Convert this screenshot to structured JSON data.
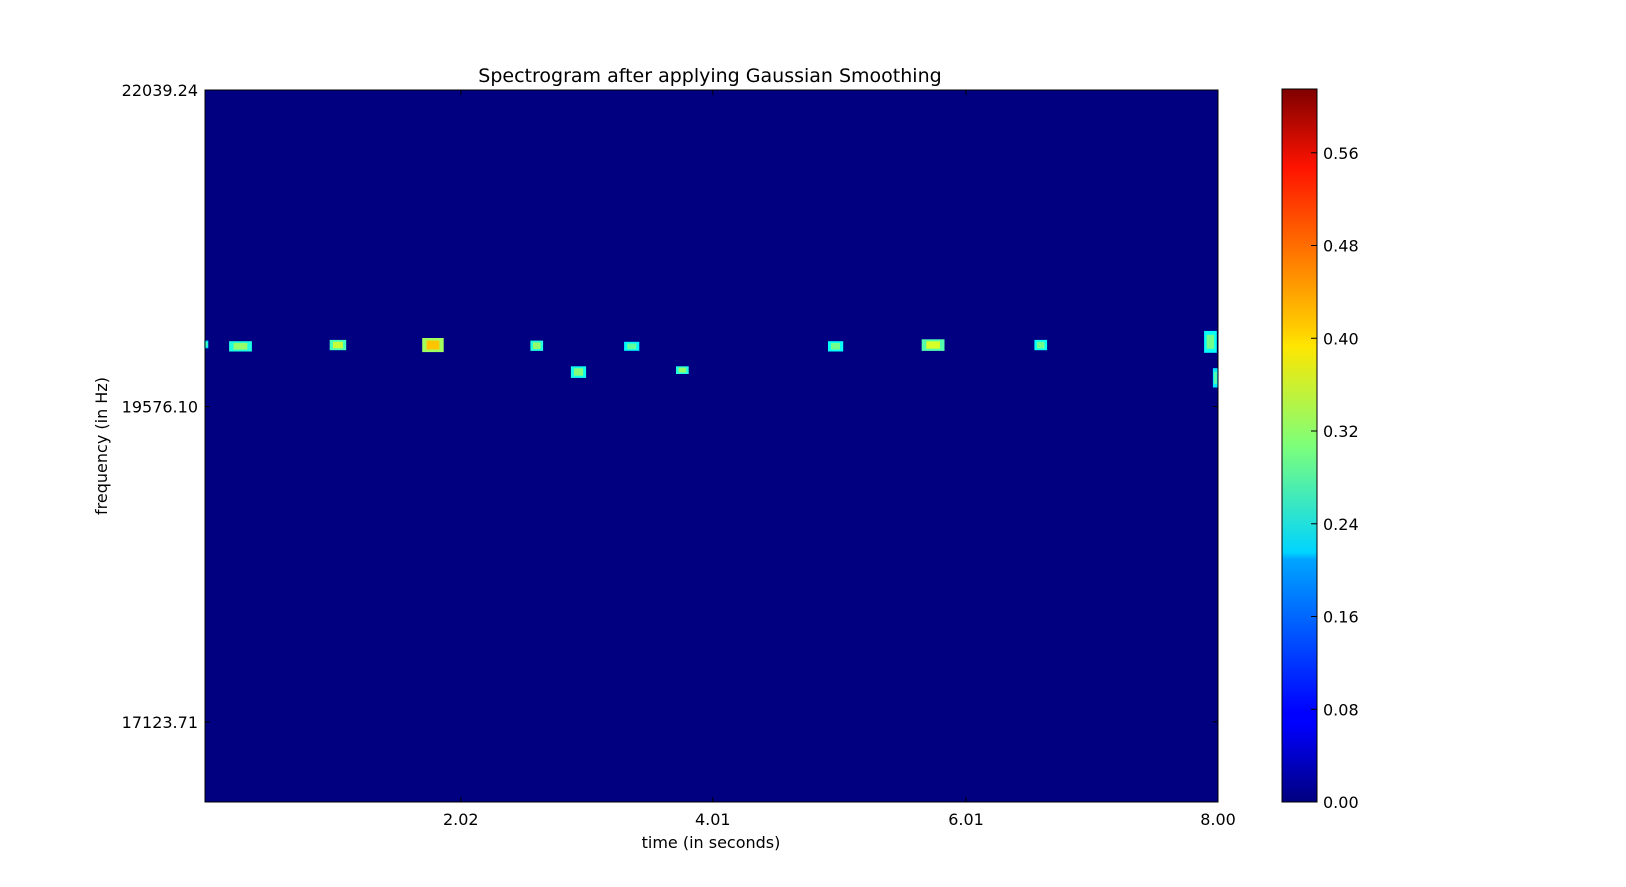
{
  "chart_data": {
    "type": "heatmap",
    "title": "Spectrogram after applying Gaussian Smoothing",
    "xlabel": "time (in seconds)",
    "ylabel": "frequency (in Hz)",
    "xlim": [
      0.0,
      8.0
    ],
    "ylim": [
      16500,
      22039.24
    ],
    "x_ticks": [
      2.02,
      4.01,
      6.01,
      8.0
    ],
    "x_tick_labels": [
      "2.02",
      "4.01",
      "6.01",
      "8.00"
    ],
    "y_ticks": [
      22039.24,
      19576.1,
      17123.71
    ],
    "y_tick_labels": [
      "22039.24",
      "19576.10",
      "17123.71"
    ],
    "background_value": 0.0,
    "colormap": "jet",
    "colorbar": {
      "min": 0.0,
      "max": 0.615,
      "ticks": [
        0.0,
        0.08,
        0.16,
        0.24,
        0.32,
        0.4,
        0.48,
        0.56
      ],
      "tick_labels": [
        "0.00",
        "0.08",
        "0.16",
        "0.24",
        "0.32",
        "0.40",
        "0.48",
        "0.56"
      ]
    },
    "blobs": [
      {
        "t": 0.01,
        "f": 20060,
        "dt": 0.03,
        "df": 60,
        "value": 0.27
      },
      {
        "t": 0.28,
        "f": 20045,
        "dt": 0.18,
        "df": 80,
        "value": 0.32
      },
      {
        "t": 1.05,
        "f": 20055,
        "dt": 0.13,
        "df": 80,
        "value": 0.35
      },
      {
        "t": 1.8,
        "f": 20055,
        "dt": 0.17,
        "df": 110,
        "value": 0.42
      },
      {
        "t": 2.62,
        "f": 20050,
        "dt": 0.1,
        "df": 80,
        "value": 0.32
      },
      {
        "t": 2.95,
        "f": 19845,
        "dt": 0.12,
        "df": 90,
        "value": 0.31
      },
      {
        "t": 3.37,
        "f": 20045,
        "dt": 0.12,
        "df": 70,
        "value": 0.29
      },
      {
        "t": 3.77,
        "f": 19860,
        "dt": 0.1,
        "df": 60,
        "value": 0.32
      },
      {
        "t": 4.98,
        "f": 20045,
        "dt": 0.12,
        "df": 80,
        "value": 0.3
      },
      {
        "t": 5.75,
        "f": 20055,
        "dt": 0.18,
        "df": 90,
        "value": 0.36
      },
      {
        "t": 6.6,
        "f": 20055,
        "dt": 0.1,
        "df": 80,
        "value": 0.3
      },
      {
        "t": 7.94,
        "f": 20080,
        "dt": 0.1,
        "df": 170,
        "value": 0.3
      },
      {
        "t": 7.98,
        "f": 19800,
        "dt": 0.04,
        "df": 150,
        "value": 0.28
      }
    ]
  }
}
